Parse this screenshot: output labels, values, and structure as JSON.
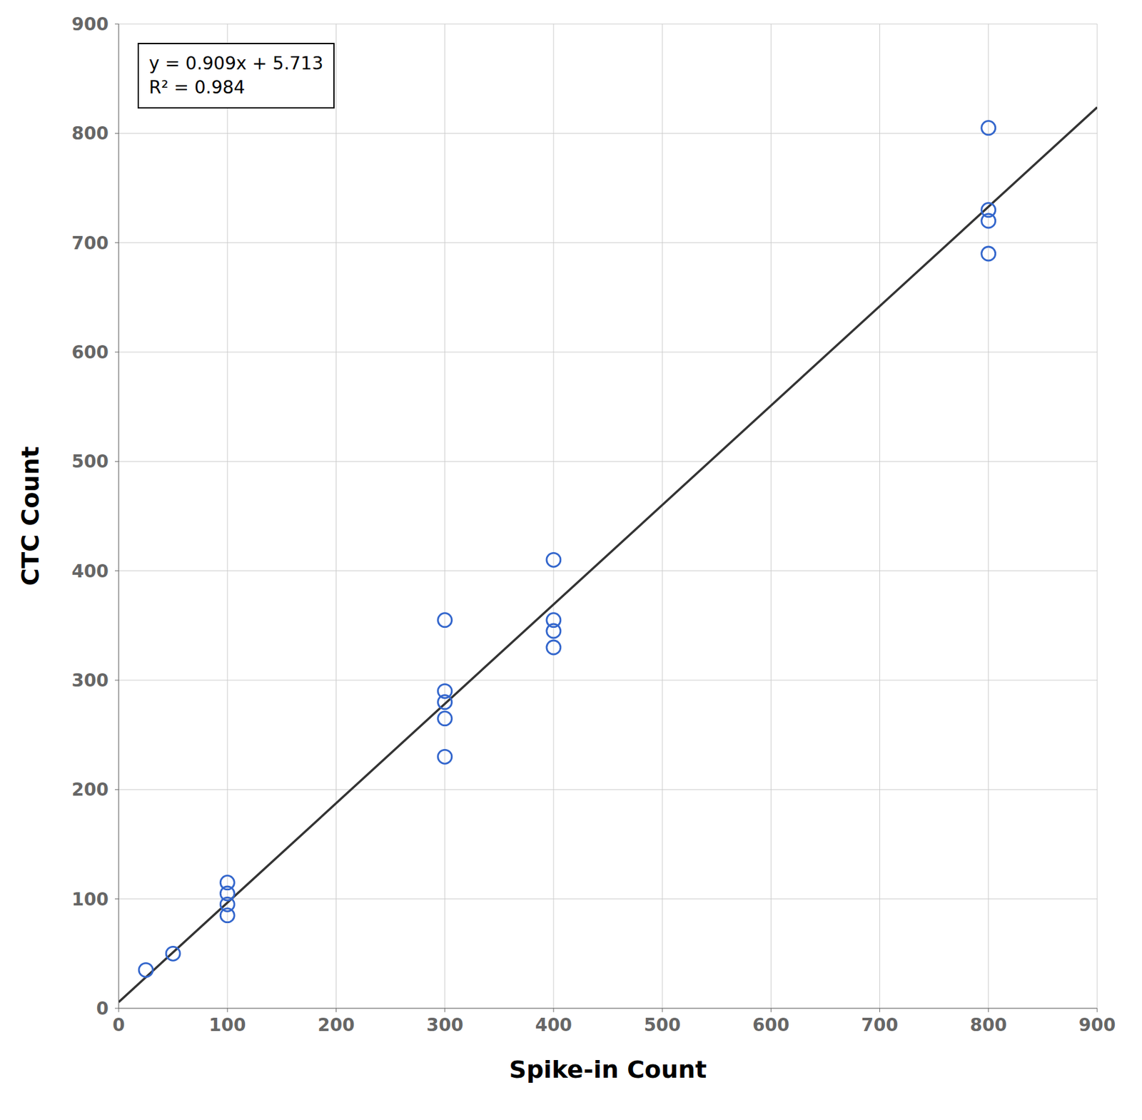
{
  "chart_data": {
    "type": "scatter",
    "xlabel": "Spike-in Count",
    "ylabel": "CTC Count",
    "xlim": [
      0,
      900
    ],
    "ylim": [
      0,
      900
    ],
    "xticks": [
      0,
      100,
      200,
      300,
      400,
      500,
      600,
      700,
      800,
      900
    ],
    "yticks": [
      0,
      100,
      200,
      300,
      400,
      500,
      600,
      700,
      800,
      900
    ],
    "grid": true,
    "annotations": [
      "y = 0.909x + 5.713",
      "R² = 0.984"
    ],
    "series": [
      {
        "type": "line",
        "color": "#333333",
        "x": [
          0,
          900
        ],
        "values": [
          5.713,
          823.813
        ]
      },
      {
        "type": "scatter",
        "marker": "circle",
        "color": "#3366CC",
        "x": [
          25,
          50,
          100,
          100,
          100,
          100,
          300,
          300,
          300,
          300,
          300,
          400,
          400,
          400,
          400,
          800,
          800,
          800,
          800
        ],
        "values": [
          35,
          50,
          85,
          95,
          105,
          115,
          230,
          265,
          280,
          290,
          355,
          330,
          345,
          355,
          410,
          690,
          720,
          730,
          805
        ]
      }
    ]
  }
}
